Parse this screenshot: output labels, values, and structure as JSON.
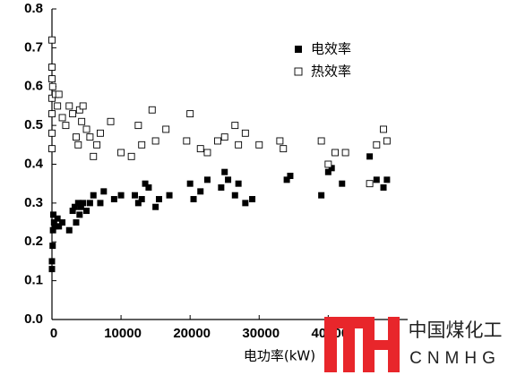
{
  "chart_data": {
    "type": "scatter",
    "x_label": "电功率(kW)",
    "xlim": [
      0,
      51500
    ],
    "ylim": [
      0,
      0.8
    ],
    "xticks": [
      0,
      10000,
      20000,
      30000,
      40000
    ],
    "yticks": [
      {
        "value": 0,
        "label": "0.0"
      },
      0.1,
      0.2,
      0.3,
      0.4,
      0.5,
      0.6,
      0.7,
      0.8
    ],
    "legend_position": "upper right",
    "grid": false,
    "series": [
      {
        "name": "电效率",
        "color": "#000000",
        "marker": "filled-square",
        "x": [
          0,
          0,
          100,
          150,
          200,
          300,
          500,
          800,
          1000,
          1500,
          2500,
          3000,
          3300,
          3500,
          3800,
          4000,
          4200,
          4500,
          5000,
          5500,
          6000,
          7000,
          7500,
          9000,
          10000,
          12000,
          12500,
          13000,
          13500,
          14000,
          15000,
          15500,
          17000,
          20000,
          20500,
          21500,
          22500,
          24500,
          25000,
          25500,
          26500,
          27000,
          28000,
          29000,
          34000,
          34500,
          39000,
          40000,
          40500,
          42000,
          46000,
          47000,
          48000,
          48500
        ],
        "values": [
          0.13,
          0.15,
          0.19,
          0.23,
          0.27,
          0.25,
          0.24,
          0.26,
          0.24,
          0.25,
          0.23,
          0.28,
          0.29,
          0.25,
          0.3,
          0.27,
          0.29,
          0.3,
          0.28,
          0.3,
          0.32,
          0.3,
          0.33,
          0.31,
          0.32,
          0.32,
          0.3,
          0.31,
          0.35,
          0.34,
          0.29,
          0.31,
          0.32,
          0.35,
          0.31,
          0.33,
          0.36,
          0.34,
          0.38,
          0.36,
          0.32,
          0.35,
          0.3,
          0.31,
          0.36,
          0.37,
          0.32,
          0.38,
          0.39,
          0.35,
          0.42,
          0.36,
          0.34,
          0.36
        ]
      },
      {
        "name": "热效率",
        "color": "#000000",
        "marker": "open-square",
        "x": [
          0,
          0,
          0,
          0,
          0,
          0,
          0,
          100,
          500,
          800,
          1000,
          1500,
          2000,
          2500,
          3000,
          3500,
          3800,
          4000,
          4300,
          4500,
          5000,
          5500,
          6000,
          6500,
          7000,
          8500,
          10000,
          11500,
          12500,
          13000,
          14500,
          15000,
          16500,
          19500,
          20000,
          21500,
          22500,
          24000,
          25000,
          26500,
          27000,
          28000,
          30000,
          33000,
          33500,
          39000,
          40000,
          41000,
          42500,
          46000,
          47000,
          48000,
          48500
        ],
        "values": [
          0.72,
          0.65,
          0.62,
          0.57,
          0.53,
          0.48,
          0.44,
          0.6,
          0.58,
          0.55,
          0.58,
          0.52,
          0.5,
          0.55,
          0.53,
          0.47,
          0.45,
          0.54,
          0.51,
          0.55,
          0.49,
          0.47,
          0.42,
          0.45,
          0.48,
          0.51,
          0.43,
          0.42,
          0.5,
          0.45,
          0.54,
          0.46,
          0.49,
          0.46,
          0.53,
          0.44,
          0.43,
          0.46,
          0.47,
          0.5,
          0.45,
          0.48,
          0.45,
          0.46,
          0.44,
          0.46,
          0.4,
          0.43,
          0.43,
          0.35,
          0.45,
          0.49,
          0.46
        ]
      }
    ]
  },
  "watermark": {
    "text": "中国煤化工",
    "subtext": "CNMHG"
  }
}
